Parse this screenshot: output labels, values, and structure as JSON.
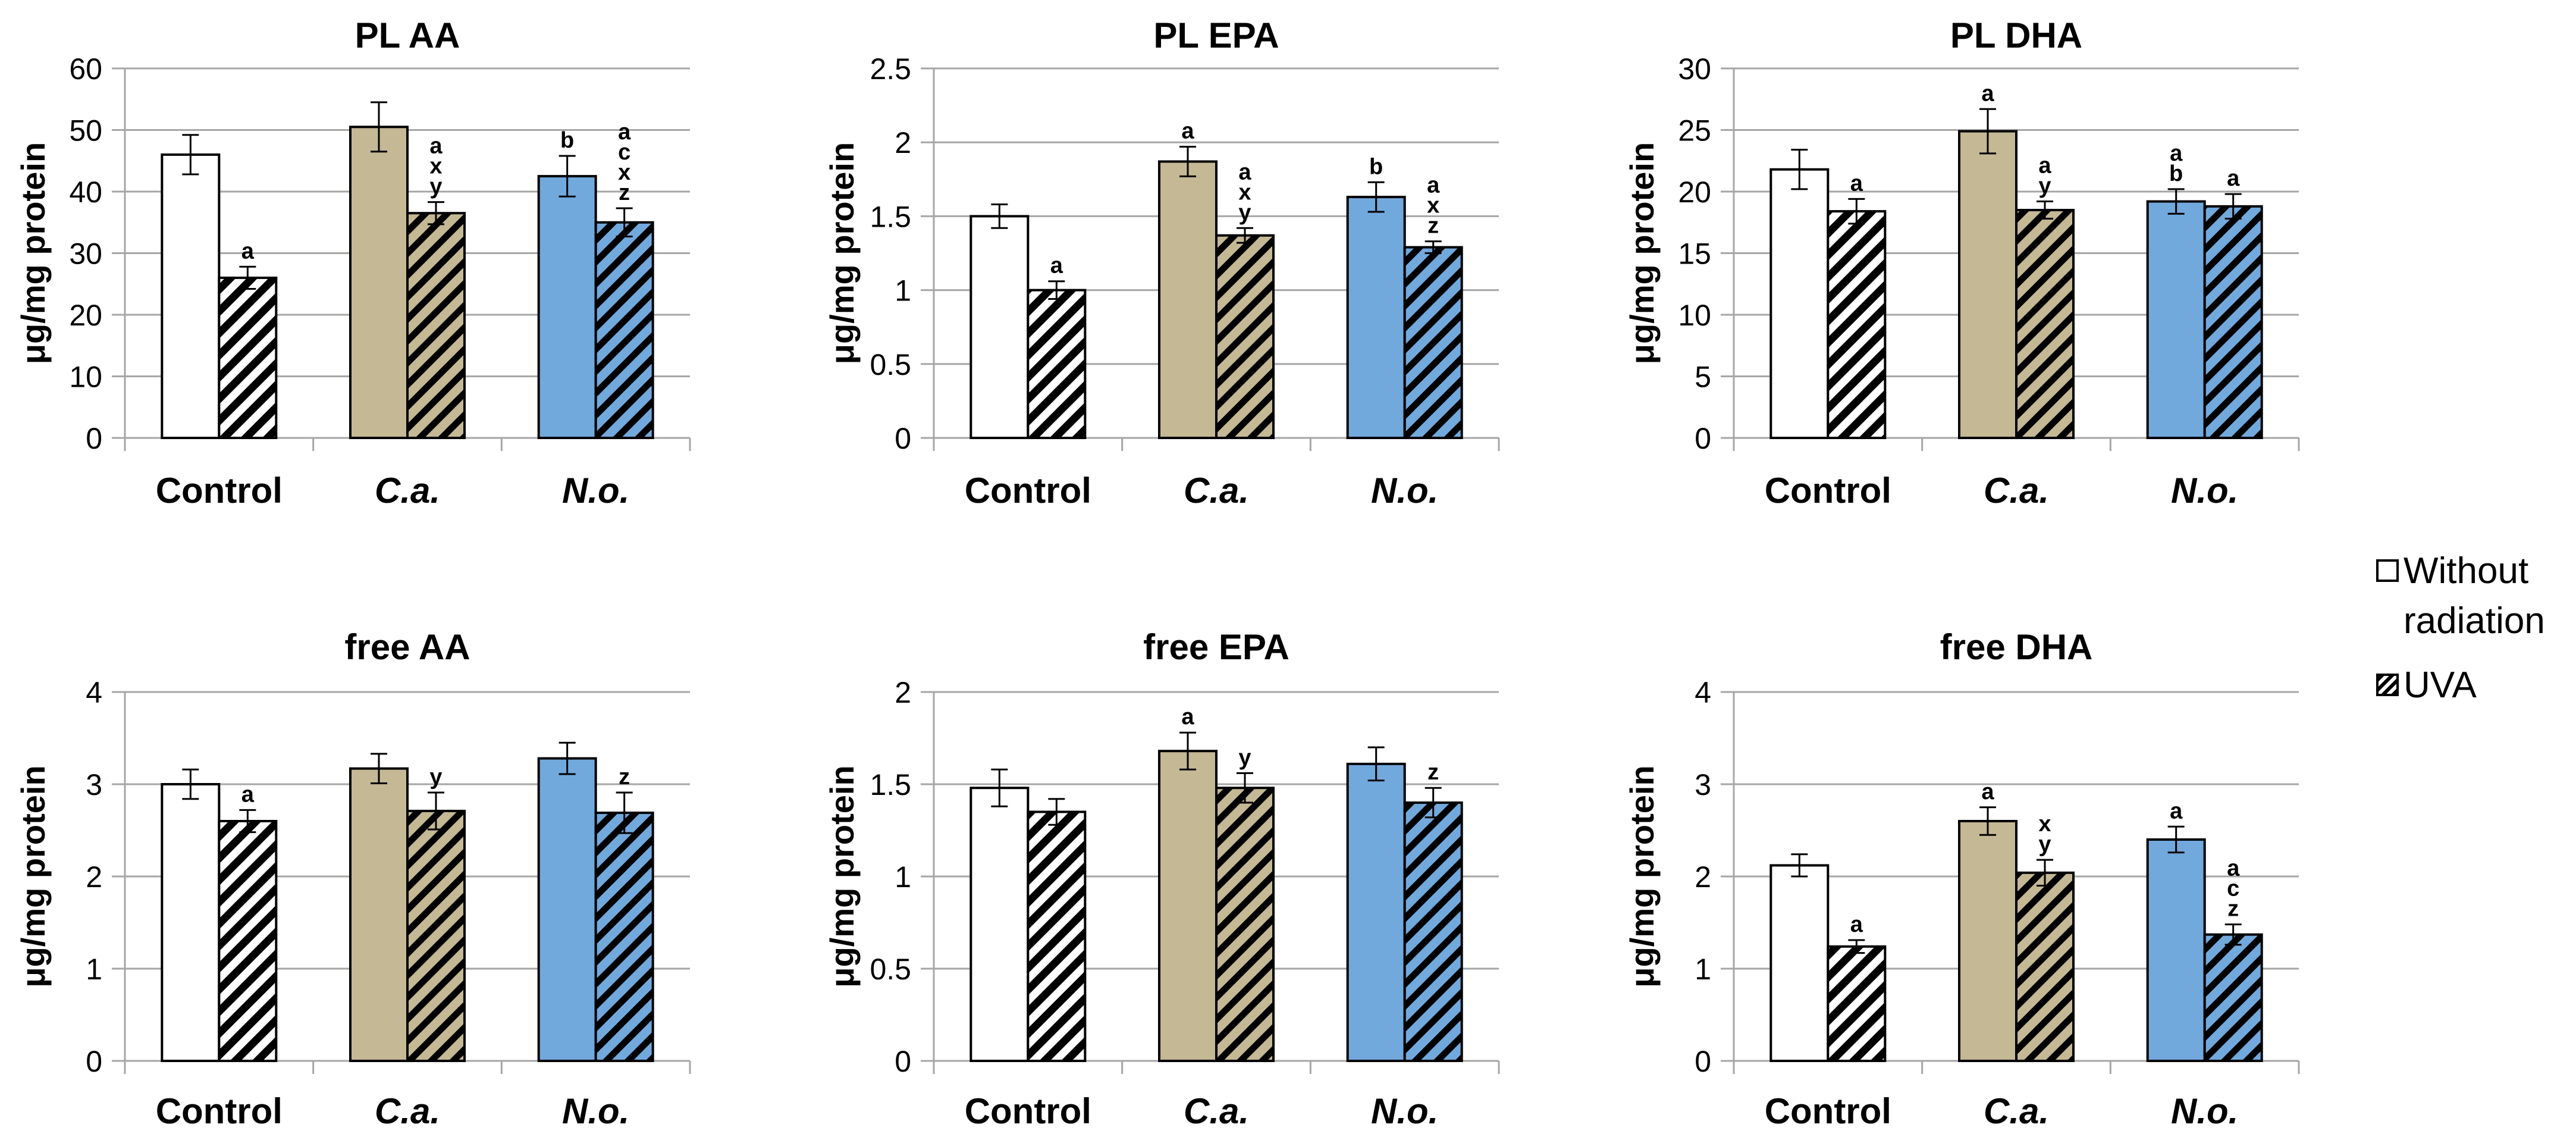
{
  "chart_data": [
    {
      "type": "bar",
      "title": "PL AA",
      "ylabel": "μg/mg protein",
      "ylim": [
        0,
        60
      ],
      "yticks": [
        0,
        10,
        20,
        30,
        40,
        50,
        60
      ],
      "categories": [
        "Control",
        "C.a.",
        "N.o."
      ],
      "series": [
        {
          "name": "Without radiation",
          "values": [
            46,
            50.5,
            42.5
          ],
          "errors": [
            3.2,
            4.0,
            3.3
          ]
        },
        {
          "name": "UVA",
          "values": [
            26,
            36.5,
            35
          ],
          "errors": [
            1.8,
            1.8,
            2.3
          ]
        }
      ],
      "annotations": [
        {
          "category": "Control",
          "series": "UVA",
          "text": [
            "a"
          ]
        },
        {
          "category": "C.a.",
          "series": "UVA",
          "text": [
            "a",
            "x",
            "y"
          ]
        },
        {
          "category": "N.o.",
          "series": "Without radiation",
          "text": [
            "b"
          ]
        },
        {
          "category": "N.o.",
          "series": "UVA",
          "text": [
            "a",
            "c",
            "x",
            "z"
          ]
        }
      ]
    },
    {
      "type": "bar",
      "title": "PL EPA",
      "ylabel": "μg/mg protein",
      "ylim": [
        0,
        2.5
      ],
      "yticks": [
        0,
        0.5,
        1,
        1.5,
        2,
        2.5
      ],
      "categories": [
        "Control",
        "C.a.",
        "N.o."
      ],
      "series": [
        {
          "name": "Without radiation",
          "values": [
            1.5,
            1.87,
            1.63
          ],
          "errors": [
            0.08,
            0.1,
            0.1
          ]
        },
        {
          "name": "UVA",
          "values": [
            1.0,
            1.37,
            1.29
          ],
          "errors": [
            0.06,
            0.05,
            0.04
          ]
        }
      ],
      "annotations": [
        {
          "category": "Control",
          "series": "UVA",
          "text": [
            "a"
          ]
        },
        {
          "category": "C.a.",
          "series": "Without radiation",
          "text": [
            "a"
          ]
        },
        {
          "category": "C.a.",
          "series": "UVA",
          "text": [
            "a",
            "x",
            "y"
          ]
        },
        {
          "category": "N.o.",
          "series": "Without radiation",
          "text": [
            "b"
          ]
        },
        {
          "category": "N.o.",
          "series": "UVA",
          "text": [
            "a",
            "x",
            "z"
          ]
        }
      ]
    },
    {
      "type": "bar",
      "title": "PL DHA",
      "ylabel": "μg/mg protein",
      "ylim": [
        0,
        30
      ],
      "yticks": [
        0,
        5,
        10,
        15,
        20,
        25,
        30
      ],
      "categories": [
        "Control",
        "C.a.",
        "N.o."
      ],
      "series": [
        {
          "name": "Without radiation",
          "values": [
            21.8,
            24.9,
            19.2
          ],
          "errors": [
            1.6,
            1.8,
            1.0
          ]
        },
        {
          "name": "UVA",
          "values": [
            18.4,
            18.5,
            18.8
          ],
          "errors": [
            1.0,
            0.7,
            1.0
          ]
        }
      ],
      "annotations": [
        {
          "category": "Control",
          "series": "UVA",
          "text": [
            "a"
          ]
        },
        {
          "category": "C.a.",
          "series": "Without radiation",
          "text": [
            "a"
          ]
        },
        {
          "category": "C.a.",
          "series": "UVA",
          "text": [
            "a",
            "y"
          ]
        },
        {
          "category": "N.o.",
          "series": "Without radiation",
          "text": [
            "a",
            "b"
          ]
        },
        {
          "category": "N.o.",
          "series": "UVA",
          "text": [
            "a"
          ]
        }
      ]
    },
    {
      "type": "bar",
      "title": "free AA",
      "ylabel": "μg/mg protein",
      "ylim": [
        0,
        4
      ],
      "yticks": [
        0,
        1,
        2,
        3,
        4
      ],
      "categories": [
        "Control",
        "C.a.",
        "N.o."
      ],
      "series": [
        {
          "name": "Without radiation",
          "values": [
            3.0,
            3.17,
            3.28
          ],
          "errors": [
            0.16,
            0.16,
            0.17
          ]
        },
        {
          "name": "UVA",
          "values": [
            2.6,
            2.71,
            2.69
          ],
          "errors": [
            0.12,
            0.2,
            0.22
          ]
        }
      ],
      "annotations": [
        {
          "category": "Control",
          "series": "UVA",
          "text": [
            "a"
          ]
        },
        {
          "category": "C.a.",
          "series": "UVA",
          "text": [
            "y"
          ]
        },
        {
          "category": "N.o.",
          "series": "UVA",
          "text": [
            "z"
          ]
        }
      ]
    },
    {
      "type": "bar",
      "title": "free EPA",
      "ylabel": "μg/mg protein",
      "ylim": [
        0,
        2
      ],
      "yticks": [
        0,
        0.5,
        1,
        1.5,
        2
      ],
      "categories": [
        "Control",
        "C.a.",
        "N.o."
      ],
      "series": [
        {
          "name": "Without radiation",
          "values": [
            1.48,
            1.68,
            1.61
          ],
          "errors": [
            0.1,
            0.1,
            0.09
          ]
        },
        {
          "name": "UVA",
          "values": [
            1.35,
            1.48,
            1.4
          ],
          "errors": [
            0.07,
            0.08,
            0.08
          ]
        }
      ],
      "annotations": [
        {
          "category": "C.a.",
          "series": "Without radiation",
          "text": [
            "a"
          ]
        },
        {
          "category": "C.a.",
          "series": "UVA",
          "text": [
            "y"
          ]
        },
        {
          "category": "N.o.",
          "series": "UVA",
          "text": [
            "z"
          ]
        }
      ]
    },
    {
      "type": "bar",
      "title": "free DHA",
      "ylabel": "μg/mg protein",
      "ylim": [
        0,
        4
      ],
      "yticks": [
        0,
        1,
        2,
        3,
        4
      ],
      "categories": [
        "Control",
        "C.a.",
        "N.o."
      ],
      "series": [
        {
          "name": "Without radiation",
          "values": [
            2.12,
            2.6,
            2.4
          ],
          "errors": [
            0.12,
            0.15,
            0.14
          ]
        },
        {
          "name": "UVA",
          "values": [
            1.24,
            2.04,
            1.37
          ],
          "errors": [
            0.07,
            0.14,
            0.11
          ]
        }
      ],
      "annotations": [
        {
          "category": "Control",
          "series": "UVA",
          "text": [
            "a"
          ]
        },
        {
          "category": "C.a.",
          "series": "Without radiation",
          "text": [
            "a"
          ]
        },
        {
          "category": "C.a.",
          "series": "UVA",
          "text": [
            "x",
            "y"
          ]
        },
        {
          "category": "N.o.",
          "series": "Without radiation",
          "text": [
            "a"
          ]
        },
        {
          "category": "N.o.",
          "series": "UVA",
          "text": [
            "a",
            "c",
            "z"
          ]
        }
      ]
    }
  ],
  "colors": {
    "control": "#ffffff",
    "ca": "#c4b895",
    "no": "#72a9dd",
    "outline": "#000000",
    "grid": "#a6a6a6"
  },
  "legend": {
    "items": [
      {
        "label": "Without radiation",
        "style": "open"
      },
      {
        "label": "UVA",
        "style": "hatched"
      }
    ]
  }
}
